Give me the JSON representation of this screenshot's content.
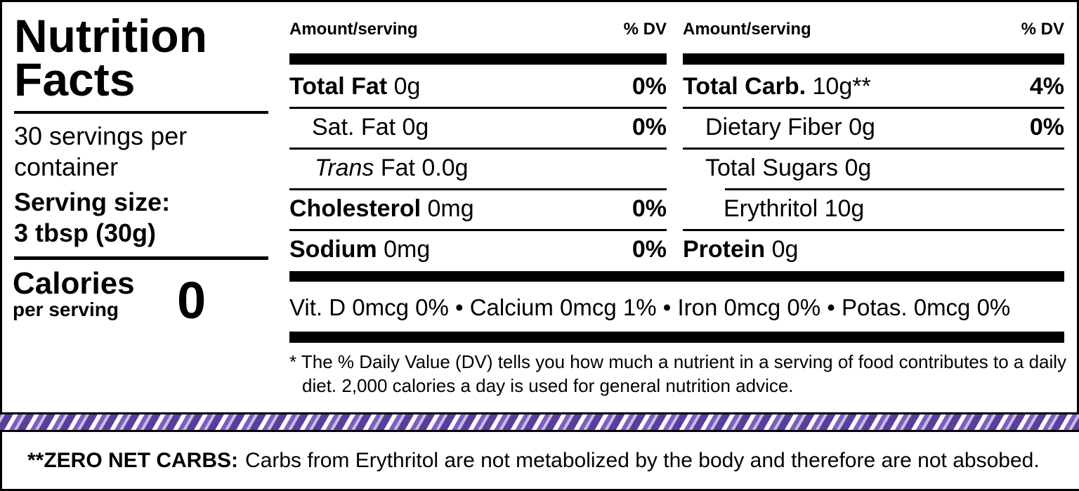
{
  "title": "Nutrition Facts",
  "servings": "30 servings per container",
  "serving_size_label": "Serving size:",
  "serving_size": "3 tbsp (30g)",
  "calories_label": "Calories",
  "calories_sub": "per serving",
  "calories": "0",
  "columns": [
    {
      "header_amount": "Amount/serving",
      "header_dv": "% DV",
      "rows": [
        {
          "name": "Total Fat",
          "amount": "0g",
          "dv": "0%"
        },
        {
          "name": "Sat. Fat",
          "amount": "0g",
          "dv": "0%"
        },
        {
          "name_italic": "Trans",
          "name": "Fat",
          "amount": "0.0g"
        },
        {
          "name": "Cholesterol",
          "amount": "0mg",
          "dv": "0%"
        },
        {
          "name": "Sodium",
          "amount": "0mg",
          "dv": "0%"
        }
      ]
    },
    {
      "header_amount": "Amount/serving",
      "header_dv": "% DV",
      "rows": [
        {
          "name": "Total Carb.",
          "amount": "10g**",
          "dv": "4%"
        },
        {
          "name": "Dietary Fiber",
          "amount": "0g",
          "dv": "0%"
        },
        {
          "name": "Total Sugars",
          "amount": "0g"
        },
        {
          "name": "Erythritol",
          "amount": "10g"
        },
        {
          "name": "Protein",
          "amount": "0g"
        }
      ]
    }
  ],
  "vitamins": "Vit. D 0mcg 0% • Calcium 0mcg 1% • Iron 0mcg 0% • Potas. 0mcg 0%",
  "footnote": "* The % Daily Value (DV) tells you how much a nutrient in a serving of food contributes to a daily diet. 2,000 calories a day is used for general nutrition advice.",
  "banner": {
    "label": "**ZERO NET CARBS:",
    "text": "Carbs from Erythritol are not metabolized by the body and therefore are not absobed."
  }
}
